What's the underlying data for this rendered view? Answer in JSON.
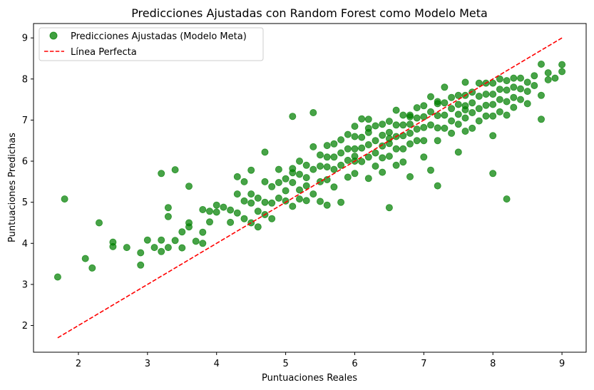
{
  "chart_data": {
    "type": "scatter",
    "title": "Predicciones Ajustadas con Random Forest como Modelo Meta",
    "xlabel": "Puntuaciones Reales",
    "ylabel": "Puntuaciones Predichas",
    "xlim": [
      1.35,
      9.35
    ],
    "ylim": [
      1.35,
      9.35
    ],
    "xticks": [
      2,
      3,
      4,
      5,
      6,
      7,
      8,
      9
    ],
    "yticks": [
      2,
      3,
      4,
      5,
      6,
      7,
      8,
      9
    ],
    "grid": false,
    "legend_position": "top-left",
    "colors": {
      "scatter": "#008000",
      "perfect_line": "#ff0000"
    },
    "series": [
      {
        "name": "Predicciones Ajustadas (Modelo Meta)",
        "kind": "scatter",
        "x": [
          1.7,
          1.8,
          2.1,
          2.2,
          2.3,
          2.5,
          2.5,
          2.7,
          2.9,
          2.9,
          3.0,
          3.1,
          3.2,
          3.2,
          3.2,
          3.3,
          3.3,
          3.3,
          3.4,
          3.4,
          3.5,
          3.5,
          3.6,
          3.6,
          3.6,
          3.7,
          3.8,
          3.8,
          3.8,
          3.9,
          3.9,
          4.0,
          4.0,
          4.1,
          4.2,
          4.2,
          4.3,
          4.3,
          4.3,
          4.4,
          4.4,
          4.4,
          4.5,
          4.5,
          4.5,
          4.5,
          4.6,
          4.6,
          4.6,
          4.7,
          4.7,
          4.7,
          4.7,
          4.8,
          4.8,
          4.8,
          4.9,
          4.9,
          4.9,
          5.0,
          5.0,
          5.0,
          5.1,
          5.1,
          5.1,
          5.1,
          5.2,
          5.2,
          5.2,
          5.2,
          5.3,
          5.3,
          5.3,
          5.3,
          5.4,
          5.4,
          5.4,
          5.5,
          5.5,
          5.5,
          5.5,
          5.6,
          5.6,
          5.6,
          5.6,
          5.6,
          5.7,
          5.7,
          5.7,
          5.7,
          5.8,
          5.8,
          5.8,
          5.8,
          5.9,
          5.9,
          5.9,
          5.9,
          6.0,
          6.0,
          6.0,
          6.0,
          6.0,
          6.1,
          6.1,
          6.1,
          6.1,
          6.2,
          6.2,
          6.2,
          6.2,
          6.2,
          6.3,
          6.3,
          6.3,
          6.3,
          6.4,
          6.4,
          6.4,
          6.4,
          6.4,
          6.5,
          6.5,
          6.5,
          6.5,
          6.5,
          6.6,
          6.6,
          6.6,
          6.6,
          6.6,
          6.7,
          6.7,
          6.7,
          6.7,
          6.7,
          6.8,
          6.8,
          6.8,
          6.8,
          6.8,
          6.9,
          6.9,
          6.9,
          6.9,
          7.0,
          7.0,
          7.0,
          7.0,
          7.0,
          7.1,
          7.1,
          7.1,
          7.1,
          7.2,
          7.2,
          7.2,
          7.2,
          7.2,
          7.3,
          7.3,
          7.3,
          7.3,
          7.4,
          7.4,
          7.4,
          7.4,
          7.5,
          7.5,
          7.5,
          7.5,
          7.5,
          7.6,
          7.6,
          7.6,
          7.6,
          7.6,
          7.7,
          7.7,
          7.7,
          7.7,
          7.8,
          7.8,
          7.8,
          7.8,
          7.9,
          7.9,
          7.9,
          7.9,
          8.0,
          8.0,
          8.0,
          8.0,
          8.0,
          8.1,
          8.1,
          8.1,
          8.1,
          8.2,
          8.2,
          8.2,
          8.2,
          8.3,
          8.3,
          8.3,
          8.3,
          8.4,
          8.4,
          8.4,
          8.5,
          8.5,
          8.5,
          8.6,
          8.6,
          8.7,
          8.7,
          8.7,
          8.8,
          8.8,
          8.9,
          9.0,
          9.0,
          5.1,
          5.4,
          6.0,
          6.2,
          6.5,
          6.8,
          7.2,
          7.6,
          8.0,
          8.2
        ],
        "y": [
          3.18,
          5.08,
          3.63,
          3.4,
          4.5,
          4.03,
          3.92,
          3.9,
          3.77,
          3.47,
          4.08,
          3.9,
          5.7,
          4.08,
          3.8,
          4.87,
          4.65,
          3.9,
          5.79,
          4.07,
          4.28,
          3.89,
          5.39,
          4.5,
          4.4,
          4.05,
          4.82,
          4.27,
          4.0,
          4.78,
          4.52,
          4.93,
          4.76,
          4.88,
          4.81,
          4.51,
          5.62,
          5.2,
          4.74,
          5.5,
          5.03,
          4.6,
          5.78,
          5.2,
          4.98,
          4.5,
          5.1,
          4.78,
          4.4,
          6.22,
          5.5,
          5.0,
          4.7,
          5.38,
          4.98,
          4.6,
          5.8,
          5.48,
          5.1,
          5.57,
          5.28,
          5.03,
          7.09,
          5.72,
          5.48,
          4.9,
          6.0,
          5.68,
          5.3,
          5.08,
          5.9,
          5.6,
          5.4,
          5.04,
          7.18,
          5.8,
          5.2,
          6.15,
          5.88,
          5.5,
          5.02,
          6.38,
          6.1,
          5.86,
          5.55,
          4.93,
          6.42,
          6.1,
          5.8,
          5.37,
          6.52,
          6.2,
          5.9,
          5.0,
          6.65,
          6.3,
          6.02,
          5.61,
          6.85,
          6.6,
          6.3,
          6.0,
          5.7,
          7.03,
          6.58,
          6.32,
          5.99,
          7.02,
          6.7,
          6.4,
          6.1,
          5.58,
          6.86,
          6.5,
          6.2,
          5.88,
          6.9,
          6.63,
          6.37,
          6.08,
          5.73,
          6.97,
          6.7,
          6.43,
          6.12,
          4.87,
          7.24,
          6.88,
          6.6,
          6.3,
          5.9,
          7.12,
          6.88,
          6.62,
          6.3,
          5.98,
          7.12,
          6.9,
          6.68,
          6.42,
          5.62,
          7.3,
          7.05,
          6.78,
          6.5,
          7.35,
          7.08,
          6.82,
          6.5,
          6.1,
          7.57,
          7.2,
          6.88,
          5.78,
          7.4,
          7.11,
          6.81,
          6.5,
          5.4,
          7.8,
          7.42,
          7.12,
          6.8,
          7.55,
          7.28,
          6.98,
          6.68,
          7.6,
          7.38,
          7.14,
          6.9,
          6.22,
          7.92,
          7.6,
          7.35,
          7.05,
          6.73,
          7.68,
          7.42,
          7.18,
          6.8,
          7.9,
          7.58,
          7.28,
          6.98,
          7.9,
          7.63,
          7.36,
          7.1,
          7.9,
          7.63,
          7.38,
          7.1,
          5.7,
          8.0,
          7.75,
          7.5,
          7.2,
          7.96,
          7.73,
          7.45,
          7.12,
          8.02,
          7.8,
          7.55,
          7.31,
          8.02,
          7.76,
          7.5,
          7.92,
          7.7,
          7.4,
          8.08,
          7.84,
          8.36,
          7.6,
          7.02,
          8.15,
          7.98,
          8.02,
          8.35,
          8.18,
          5.82,
          6.35,
          6.12,
          6.8,
          6.55,
          7.08,
          7.45,
          7.25,
          6.62,
          5.08
        ]
      },
      {
        "name": "Línea Perfecta",
        "kind": "line",
        "style": "dashed",
        "x": [
          1.7,
          9.0
        ],
        "y": [
          1.7,
          9.0
        ]
      }
    ]
  }
}
